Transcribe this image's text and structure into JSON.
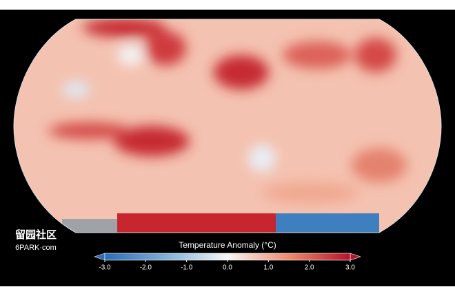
{
  "map": {
    "watermark": {
      "name": "留园社区",
      "site": "6PARK·com"
    }
  },
  "colorbar": {
    "title": "Temperature Anomaly (°C)",
    "lim": [
      -3,
      3
    ],
    "ticks": [
      {
        "value": -3,
        "label": "-3.0"
      },
      {
        "value": -2,
        "label": "-2.0"
      },
      {
        "value": -1,
        "label": "-1.0"
      },
      {
        "value": 0,
        "label": "0.0"
      },
      {
        "value": 1,
        "label": "1.0"
      },
      {
        "value": 2,
        "label": "2.0"
      },
      {
        "value": 3,
        "label": "3.0"
      }
    ]
  }
}
